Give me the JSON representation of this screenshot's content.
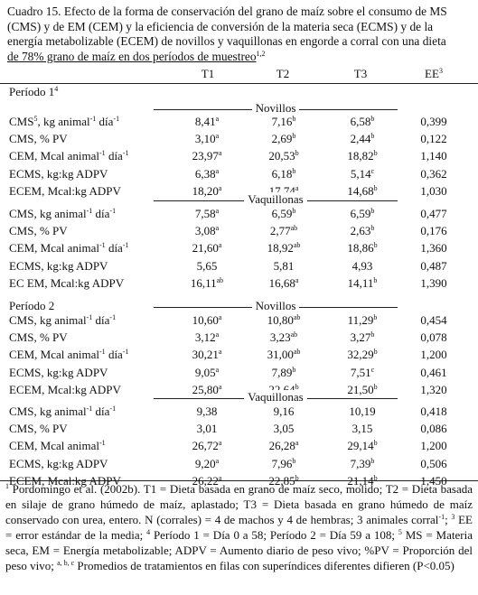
{
  "caption": {
    "lines": [
      "Cuadro 15. Efecto de la forma de conservación del grano de maíz sobre el consumo de MS",
      "(CMS) y de EM (CEM) y la eficiencia de conversión de la materia seca (ECMS) y de la",
      "energía metabolizable (ECEM) de novillos y vaquillonas en engorde a corral con una dieta",
      "de 78% grano de maíz en dos períodos de muestreo"
    ],
    "last_sup": "1,2"
  },
  "headers": {
    "t1": "T1",
    "t2": "T2",
    "t3": "T3",
    "ee": "EE",
    "ee_sup": "3"
  },
  "periods": [
    {
      "label": "Período 1",
      "label_sup": "4",
      "groups": [
        {
          "name": "Novillos",
          "rows": [
            {
              "label": "CMS",
              "label_sup": "5",
              "label_rest": ", kg animal",
              "unit_sup1": "-1",
              "unit_mid": " día",
              "unit_sup2": "-1",
              "v1": "8,41",
              "s1": "a",
              "v2": "7,16",
              "s2": "b",
              "v3": "6,58",
              "s3": "b",
              "ee": "0,399"
            },
            {
              "label": "CMS, % PV",
              "v1": "3,10",
              "s1": "a",
              "v2": "2,69",
              "s2": "b",
              "v3": "2,44",
              "s3": "b",
              "ee": "0,122"
            },
            {
              "label": "CEM, Mcal animal",
              "unit_sup1": "-1",
              "unit_mid": " día",
              "unit_sup2": "-1",
              "v1": "23,97",
              "s1": "a",
              "v2": "20,53",
              "s2": "b",
              "v3": "18,82",
              "s3": "b",
              "ee": "1,140"
            },
            {
              "label": "ECMS, kg:kg ADPV",
              "v1": "6,38",
              "s1": "a",
              "v2": "6,18",
              "s2": "b",
              "v3": "5,14",
              "s3": "c",
              "ee": "0,362"
            },
            {
              "label": "ECEM, Mcal:kg ADPV",
              "v1": "18,20",
              "s1": "a",
              "v2": "17,74",
              "s2": "a",
              "v3": "14,68",
              "s3": "b",
              "ee": "1,030"
            }
          ]
        },
        {
          "name": "Vaquillonas",
          "rows": [
            {
              "label": "CMS, kg animal",
              "unit_sup1": "-1",
              "unit_mid": " día",
              "unit_sup2": "-1",
              "v1": "7,58",
              "s1": "a",
              "v2": "6,59",
              "s2": "b",
              "v3": "6,59",
              "s3": "b",
              "ee": "0,477"
            },
            {
              "label": "CMS, % PV",
              "v1": "3,08",
              "s1": "a",
              "v2": "2,77",
              "s2": "ab",
              "v3": "2,63",
              "s3": "b",
              "ee": "0,176"
            },
            {
              "label": "CEM, Mcal animal",
              "unit_sup1": "-1",
              "unit_mid": " día",
              "unit_sup2": "-1",
              "v1": "21,60",
              "s1": "a",
              "v2": "18,92",
              "s2": "ab",
              "v3": "18,86",
              "s3": "b",
              "ee": "1,360"
            },
            {
              "label": "ECMS, kg:kg ADPV",
              "v1": "5,65",
              "s1": "",
              "v2": "5,81",
              "s2": "",
              "v3": "4,93",
              "s3": "",
              "ee": "0,487"
            },
            {
              "label": "EC EM, Mcal:kg ADPV",
              "v1": "16,11",
              "s1": "ab",
              "v2": "16,68",
              "s2": "a",
              "v3": "14,11",
              "s3": "b",
              "ee": "1,390"
            }
          ]
        }
      ]
    },
    {
      "label": "Período 2",
      "label_sup": "",
      "groups": [
        {
          "name": "Novillos",
          "rows": [
            {
              "label": "CMS, kg animal",
              "unit_sup1": "-1",
              "unit_mid": " día",
              "unit_sup2": "-1",
              "v1": "10,60",
              "s1": "a",
              "v2": "10,80",
              "s2": "ab",
              "v3": "11,29",
              "s3": "b",
              "ee": "0,454"
            },
            {
              "label": "CMS, % PV",
              "v1": "3,12",
              "s1": "a",
              "v2": "3,23",
              "s2": "ab",
              "v3": "3,27",
              "s3": "b",
              "ee": "0,078"
            },
            {
              "label": "CEM, Mcal animal",
              "unit_sup1": "-1",
              "unit_mid": " día",
              "unit_sup2": "-1",
              "v1": "30,21",
              "s1": "a",
              "v2": "31,00",
              "s2": "ab",
              "v3": "32,29",
              "s3": "b",
              "ee": "1,200"
            },
            {
              "label": "ECMS, kg:kg ADPV",
              "v1": "9,05",
              "s1": "a",
              "v2": "7,89",
              "s2": "b",
              "v3": "7,51",
              "s3": "c",
              "ee": "0,461"
            },
            {
              "label": "ECEM, Mcal:kg ADPV",
              "v1": "25,80",
              "s1": "a",
              "v2": "22,64",
              "s2": "b",
              "v3": "21,50",
              "s3": "b",
              "ee": "1,320"
            }
          ]
        },
        {
          "name": "Vaquillonas",
          "rows": [
            {
              "label": "CMS, kg animal",
              "unit_sup1": "-1",
              "unit_mid": " día",
              "unit_sup2": "-1",
              "v1": "9,38",
              "s1": "",
              "v2": "9,16",
              "s2": "",
              "v3": "10,19",
              "s3": "",
              "ee": "0,418"
            },
            {
              "label": "CMS, % PV",
              "v1": "3,01",
              "s1": "",
              "v2": "3,05",
              "s2": "",
              "v3": "3,15",
              "s3": "",
              "ee": "0,086"
            },
            {
              "label": "CEM, Mcal animal",
              "unit_sup1": "-1",
              "v1": "26,72",
              "s1": "a",
              "v2": "26,28",
              "s2": "a",
              "v3": "29,14",
              "s3": "b",
              "ee": "1,200"
            },
            {
              "label": "ECMS, kg:kg ADPV",
              "v1": "9,20",
              "s1": "a",
              "v2": "7,96",
              "s2": "b",
              "v3": "7,39",
              "s3": "b",
              "ee": "0,506"
            },
            {
              "label": "ECEM, Mcal:kg ADPV",
              "v1": "26,22",
              "s1": "a",
              "v2": "22,85",
              "s2": "b",
              "v3": "21,14",
              "s3": "b",
              "ee": "1,450"
            }
          ]
        }
      ]
    }
  ],
  "footnote": {
    "sup1": "1",
    "part1": " Pordomingo et al. (2002b).   T1 = Dieta basada en grano de maíz seco, molido; T2 = Dieta basada en silaje de grano húmedo de maíz, aplastado; T3 = Dieta basada en grano húmedo de maíz conservado con urea, entero.  N (corrales) = 4 de machos y 4 de hembras; 3 animales corral",
    "sup_m1": "-1",
    "part2": "; ",
    "sup3": "3",
    "part3": " EE = error estándar de la media; ",
    "sup4": "4",
    "part4": " Período 1 = Día 0 a 58; Período 2 = Día 59 a 108; ",
    "sup5": "5",
    "part5": " MS = Materia seca, EM = Energía metabolizable; ADPV = Aumento diario de peso vivo; %PV = Proporción del peso vivo; ",
    "sup_abc": "a, b, c",
    "part6": " Promedios de tratamientos en filas con superíndices diferentes difieren (P<0.05)"
  }
}
